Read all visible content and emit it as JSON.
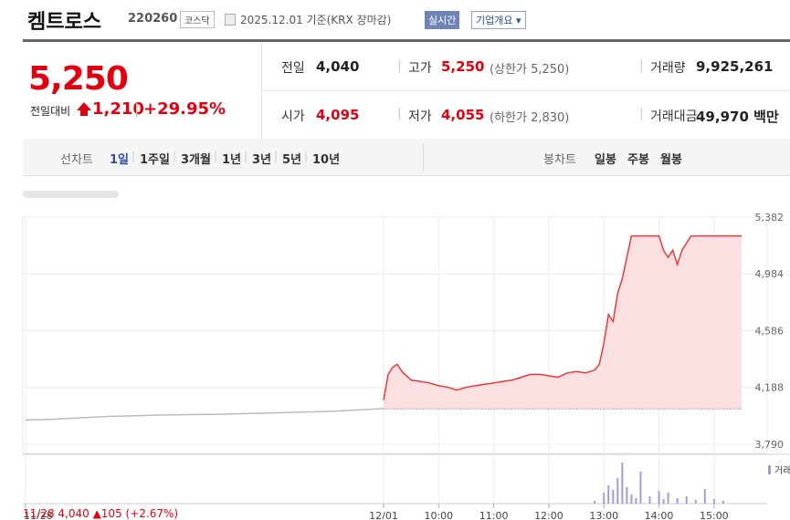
{
  "header": {
    "name": "켐트로스",
    "code": "220260",
    "market": "코스닥",
    "date": "2025.12.01 기준(KRX 장마감)",
    "realtime": "실시간",
    "company_info": "기업개요"
  },
  "price": {
    "current": "5,250",
    "change_label": "전일대비",
    "change": "1,210",
    "change_pct": "+29.95%"
  },
  "stats": [
    {
      "label": "전일",
      "value": "4,040",
      "color": "#222222"
    },
    {
      "label": "고가",
      "value": "5,250",
      "note": "(상한가 5,250)",
      "color": "#e0000f"
    },
    {
      "label": "거래량",
      "value": "9,925,261",
      "color": "#222222"
    },
    {
      "label": "시가",
      "value": "4,095",
      "color": "#e0000f"
    },
    {
      "label": "저가",
      "value": "4,055",
      "note": "(하한가 2,830)",
      "color": "#e0000f"
    },
    {
      "label": "거래대금",
      "value": "49,970 백만",
      "color": "#222222"
    }
  ],
  "tabs": {
    "line_label": "선차트",
    "line": [
      "1일",
      "1주일",
      "3개월",
      "1년",
      "3년",
      "5년",
      "10년"
    ],
    "candle_label": "봉차트",
    "candle": [
      "일봉",
      "주봉",
      "월봉"
    ]
  },
  "info": "11/28 4,040 ▲105 (+2.67%)",
  "chart_data": {
    "type": "line",
    "xlim": [
      0,
      156
    ],
    "ylim": [
      3726,
      5382
    ],
    "yticks": [
      {
        "value": 5382,
        "label": "5,382"
      },
      {
        "value": 4984,
        "label": "4,984"
      },
      {
        "value": 4586,
        "label": "4,586"
      },
      {
        "value": 4188,
        "label": "4,188"
      },
      {
        "value": 3790,
        "label": "3,790"
      }
    ],
    "xticks": [
      {
        "value": 0,
        "label": "11/28"
      },
      {
        "value": 78,
        "label": "12/01"
      },
      {
        "value": 90,
        "label": "10:00"
      },
      {
        "value": 102,
        "label": "11:00"
      },
      {
        "value": 114,
        "label": "12:00"
      },
      {
        "value": 126,
        "label": "13:00"
      },
      {
        "value": 138,
        "label": "14:00"
      },
      {
        "value": 150,
        "label": "15:00"
      }
    ],
    "baseline": 4040,
    "series": [
      {
        "color": "#bbbbbb",
        "x": [
          0,
          6,
          12,
          18,
          24,
          30,
          36,
          42,
          48,
          54,
          60,
          66,
          72,
          78
        ],
        "values": [
          3960,
          3965,
          3975,
          3985,
          3990,
          3995,
          3998,
          4000,
          4005,
          4010,
          4015,
          4020,
          4030,
          4040
        ]
      },
      {
        "color": "#e8383d",
        "fill": "#fbe0e1",
        "x": [
          78,
          79,
          80,
          81,
          82,
          83,
          84,
          86,
          88,
          90,
          92,
          94,
          96,
          98,
          100,
          102,
          104,
          106,
          108,
          110,
          112,
          114,
          116,
          118,
          120,
          122,
          124,
          125,
          126,
          127,
          128,
          129,
          130,
          131,
          132,
          134,
          136,
          138,
          139,
          140,
          141,
          142,
          143,
          144,
          145,
          148,
          152,
          156
        ],
        "values": [
          4100,
          4280,
          4330,
          4350,
          4300,
          4270,
          4240,
          4230,
          4220,
          4200,
          4190,
          4170,
          4190,
          4200,
          4210,
          4220,
          4230,
          4240,
          4260,
          4280,
          4280,
          4270,
          4260,
          4290,
          4300,
          4290,
          4310,
          4350,
          4500,
          4700,
          4650,
          4850,
          4950,
          5100,
          5250,
          5250,
          5250,
          5250,
          5150,
          5100,
          5150,
          5050,
          5150,
          5200,
          5250,
          5250,
          5250,
          5250
        ]
      }
    ],
    "volume": {
      "name": "거래",
      "color": "#a59ad6",
      "vlim": [
        0,
        50
      ],
      "x": [
        124,
        126,
        127,
        128,
        129,
        130,
        131,
        132,
        133,
        134,
        136,
        138,
        139,
        140,
        142,
        144,
        146,
        148,
        150,
        152
      ],
      "values": [
        3,
        12,
        20,
        15,
        28,
        45,
        18,
        10,
        6,
        35,
        8,
        14,
        5,
        12,
        6,
        8,
        4,
        16,
        5,
        3
      ]
    }
  }
}
